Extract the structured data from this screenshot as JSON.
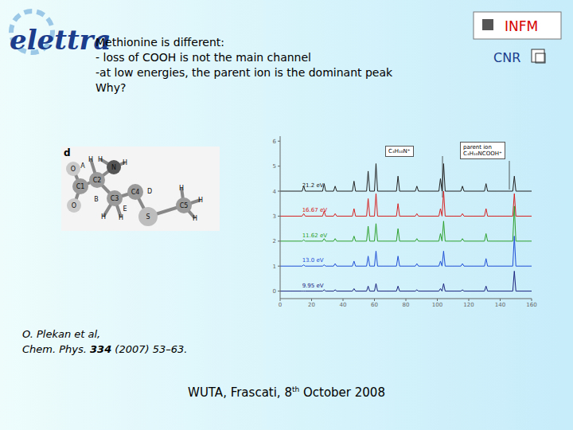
{
  "header": {
    "logo": "elettra",
    "institute": "INFM",
    "institute2": "CNR"
  },
  "text": {
    "lines": [
      "Methionine is different:",
      "- loss of COOH is not the main channel",
      "-at low energies, the parent ion is the dominant peak",
      "Why?"
    ]
  },
  "molecule": {
    "panel": "d",
    "atoms": [
      "O",
      "A",
      "H",
      "H",
      "N",
      "H",
      "C1",
      "C2",
      "O",
      "B",
      "C3",
      "C4",
      "H",
      "H",
      "E",
      "D",
      "S",
      "C5",
      "H",
      "H",
      "H"
    ]
  },
  "citation": {
    "authors": "O. Plekan et al,",
    "journal": "Chem. Phys.",
    "volume": "334",
    "pages": "(2007) 53–63."
  },
  "footer": {
    "before": "WUTA, Frascati, 8",
    "sup": "th",
    "after": " October 2008"
  },
  "annotations": [
    {
      "lines": [
        "C₄H₁₀N⁺"
      ]
    },
    {
      "lines": [
        "parent ion",
        "C₄H₁₀NCOOH⁺"
      ]
    }
  ],
  "chart_data": {
    "type": "line",
    "grid": false,
    "x": [
      0,
      14,
      15,
      16,
      27,
      28,
      29,
      34,
      35,
      36,
      46,
      47,
      48,
      55,
      56,
      57,
      60,
      61,
      62,
      74,
      75,
      76,
      86,
      87,
      88,
      101,
      102,
      103,
      104,
      105,
      115,
      116,
      117,
      130,
      131,
      132,
      148,
      149,
      150,
      160
    ],
    "xlim": [
      0,
      160
    ],
    "xticks": [
      0,
      20,
      40,
      60,
      80,
      100,
      120,
      140,
      160
    ],
    "ylim": [
      -0.3,
      6.2
    ],
    "yticks": [
      0,
      1,
      2,
      3,
      4,
      5,
      6
    ],
    "series": [
      {
        "name": "21.2 eV",
        "color": "#222222",
        "values": [
          4,
          4,
          4.2,
          4,
          4,
          4.3,
          4,
          4,
          4.2,
          4,
          4,
          4.4,
          4,
          4,
          4.8,
          4,
          4,
          5.1,
          4,
          4,
          4.6,
          4,
          4,
          4.2,
          4,
          4,
          4.5,
          4,
          5.1,
          4,
          4,
          4.2,
          4,
          4,
          4.3,
          4,
          4,
          4.6,
          4,
          4
        ]
      },
      {
        "name": "16.67 eV",
        "color": "#d62020",
        "values": [
          3,
          3,
          3.1,
          3,
          3,
          3.2,
          3,
          3,
          3.1,
          3,
          3,
          3.3,
          3,
          3,
          3.7,
          3,
          3,
          3.9,
          3,
          3,
          3.5,
          3,
          3,
          3.1,
          3,
          3,
          3.3,
          3,
          4.0,
          3,
          3,
          3.1,
          3,
          3,
          3.3,
          3,
          3,
          3.9,
          3,
          3
        ]
      },
      {
        "name": "11.62 eV",
        "color": "#2ca02c",
        "values": [
          2,
          2,
          2.05,
          2,
          2,
          2.1,
          2,
          2,
          2.1,
          2,
          2,
          2.2,
          2,
          2,
          2.6,
          2,
          2,
          2.7,
          2,
          2,
          2.5,
          2,
          2,
          2.1,
          2,
          2,
          2.3,
          2,
          2.8,
          2,
          2,
          2.1,
          2,
          2,
          2.3,
          2,
          2,
          3.4,
          2,
          2
        ]
      },
      {
        "name": "13.0 eV",
        "color": "#1f4fd6",
        "values": [
          1,
          1,
          1.05,
          1,
          1,
          1.05,
          1,
          1,
          1.1,
          1,
          1,
          1.2,
          1,
          1,
          1.4,
          1,
          1,
          1.6,
          1,
          1,
          1.4,
          1,
          1,
          1.1,
          1,
          1,
          1.2,
          1,
          1.6,
          1,
          1,
          1.1,
          1,
          1,
          1.3,
          1,
          1,
          2.2,
          1,
          1
        ]
      },
      {
        "name": "9.95 eV",
        "color": "#1a237e",
        "values": [
          0,
          0,
          0,
          0,
          0,
          0.05,
          0,
          0,
          0.05,
          0,
          0,
          0.1,
          0,
          0,
          0.2,
          0,
          0,
          0.3,
          0,
          0,
          0.2,
          0,
          0,
          0.05,
          0,
          0,
          0.1,
          0,
          0.3,
          0,
          0,
          0.05,
          0,
          0,
          0.2,
          0,
          0,
          0.8,
          0,
          0
        ]
      }
    ]
  }
}
